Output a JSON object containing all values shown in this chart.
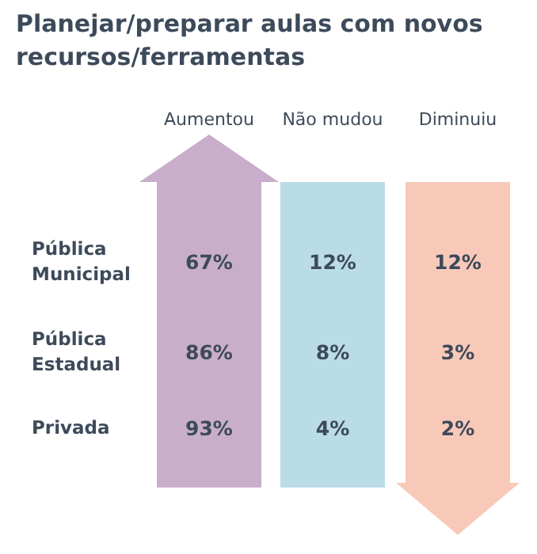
{
  "chart_data": {
    "type": "heatmap",
    "title": "Planejar/preparar aulas com novos recursos/ferramentas",
    "categories": [
      "Aumentou",
      "Não mudou",
      "Diminuiu"
    ],
    "y_categories": [
      "Pública Municipal",
      "Pública Estadual",
      "Privada"
    ],
    "cells": [
      [
        67,
        12,
        12
      ],
      [
        86,
        8,
        3
      ],
      [
        93,
        4,
        2
      ]
    ],
    "cell_labels": [
      [
        "67%",
        "12%",
        "12%"
      ],
      [
        "86%",
        "8%",
        "3%"
      ],
      [
        "93%",
        "4%",
        "2%"
      ]
    ],
    "colors": [
      "#c9aecb",
      "#b9dce6",
      "#f8c9b9"
    ]
  }
}
